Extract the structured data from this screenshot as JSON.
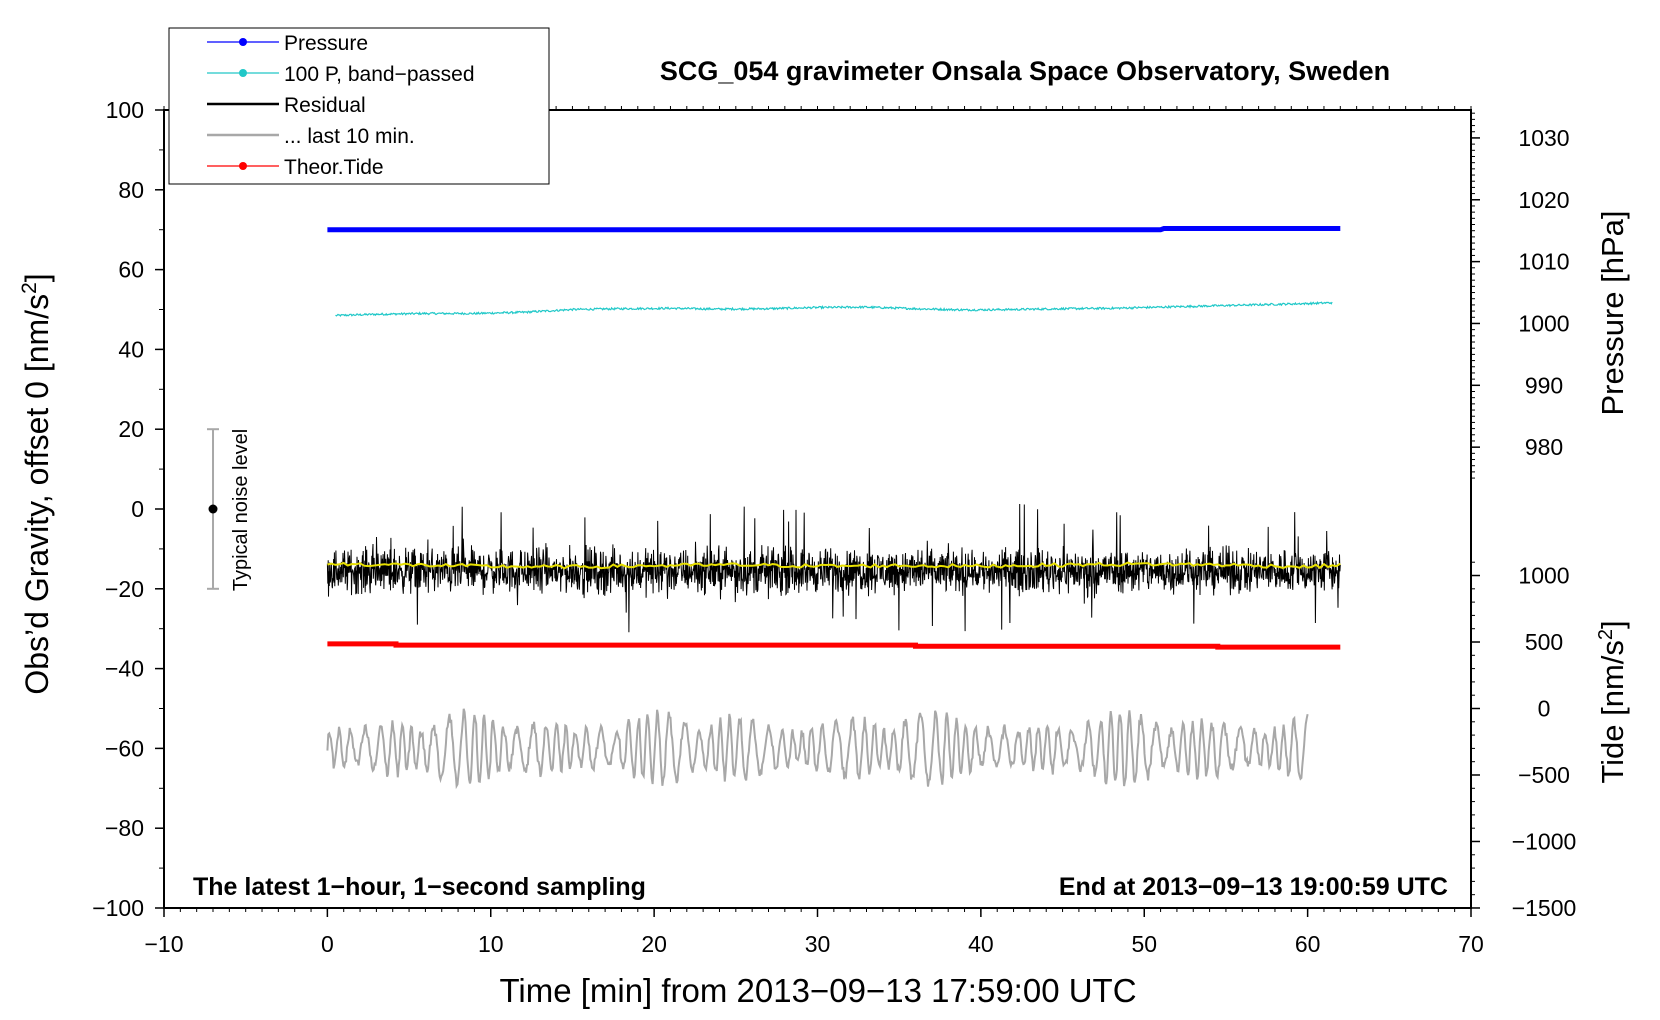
{
  "chart_data": {
    "type": "line",
    "title": "SCG_054 gravimeter Onsala Space Observatory, Sweden",
    "xlabel": "Time [min] from 2013−09−13 17:59:00 UTC",
    "ylabel_left_main": "Obs’d Gravity, offset 0 [nm/s",
    "ylabel_left_sup": "2",
    "ylabel_left_close": "]",
    "ylabel_pressure": "Pressure [hPa]",
    "ylabel_tide_main": "Tide [nm/s",
    "ylabel_tide_sup": "2",
    "ylabel_tide_close": "]",
    "xlim": [
      -10,
      70
    ],
    "ylim": [
      -100,
      100
    ],
    "x_ticks": [
      "−10",
      "0",
      "10",
      "20",
      "30",
      "40",
      "50",
      "60",
      "70"
    ],
    "x_tick_values": [
      -10,
      0,
      10,
      20,
      30,
      40,
      50,
      60,
      70
    ],
    "y_ticks": [
      "100",
      "80",
      "60",
      "40",
      "20",
      "0",
      "−20",
      "−40",
      "−60",
      "−80",
      "−100"
    ],
    "y_tick_values": [
      100,
      80,
      60,
      40,
      20,
      0,
      -20,
      -40,
      -60,
      -80,
      -100
    ],
    "pressure_axis": {
      "ticks": [
        "1030",
        "1020",
        "1010",
        "1000",
        "990",
        "980"
      ],
      "tick_values": [
        1030,
        1020,
        1010,
        1000,
        990,
        980
      ],
      "gravity_at_1000": 46.5,
      "gravity_per_hPa": 1.55
    },
    "tide_axis": {
      "ticks": [
        "1000",
        "500",
        "0",
        "−500",
        "−1000",
        "−1500"
      ],
      "tick_values": [
        1000,
        500,
        0,
        -500,
        -1000,
        -1500
      ],
      "gravity_at_0": -50.0,
      "gravity_per_unit": 0.03333
    },
    "legend": [
      {
        "label": "Pressure",
        "color": "#0000ff",
        "style": "line-dot"
      },
      {
        "label": "100 P, band−passed",
        "color": "#20c8c8",
        "style": "line-dot"
      },
      {
        "label": "Residual",
        "color": "#000000",
        "style": "line"
      },
      {
        "label": "... last 10 min.",
        "color": "#a8a8a8",
        "style": "line"
      },
      {
        "label": "Theor.Tide",
        "color": "#ff0000",
        "style": "line-dot"
      }
    ],
    "series": [
      {
        "name": "Pressure",
        "color": "#0000ff",
        "x": [
          0,
          51,
          51.2,
          62
        ],
        "y": [
          70.0,
          70.0,
          70.3,
          70.3
        ]
      },
      {
        "name": "100 P, band−passed",
        "color": "#20c8c8",
        "x": [
          0.5,
          3,
          6,
          9,
          12,
          15,
          18,
          21,
          24,
          27,
          30,
          33,
          36,
          39,
          42,
          45,
          48,
          51,
          54,
          57,
          60,
          61.5
        ],
        "y": [
          48.5,
          48.8,
          49.0,
          49.0,
          49.3,
          50.0,
          50.2,
          50.3,
          50.1,
          50.2,
          50.5,
          50.6,
          50.2,
          49.9,
          50.0,
          50.2,
          50.3,
          50.6,
          50.9,
          51.2,
          51.5,
          51.7
        ]
      },
      {
        "name": "Residual",
        "color": "#000000",
        "x_range": [
          0,
          62
        ],
        "center": -15.5,
        "noise_amplitude": 8,
        "spike_range": [
          -31,
          2
        ]
      },
      {
        "name": "Residual smoothed",
        "color": "#e8e000",
        "x": [
          0,
          5,
          10,
          15,
          20,
          25,
          30,
          35,
          40,
          45,
          50,
          55,
          60,
          62
        ],
        "y": [
          -13.8,
          -14.0,
          -14.4,
          -14.5,
          -14.2,
          -14.0,
          -14.3,
          -14.2,
          -14.3,
          -14.0,
          -13.8,
          -14.0,
          -14.5,
          -14.0
        ]
      },
      {
        "name": "... last 10 min.",
        "color": "#a8a8a8",
        "x_range": [
          0,
          60
        ],
        "center": -60,
        "amplitude_range": [
          -77,
          -46
        ]
      },
      {
        "name": "Theor.Tide",
        "color": "#ff0000",
        "x": [
          0,
          4.2,
          4.2,
          36,
          36,
          54.5,
          54.5,
          62
        ],
        "y": [
          -33.8,
          -33.8,
          -34.1,
          -34.1,
          -34.4,
          -34.4,
          -34.6,
          -34.6
        ]
      }
    ],
    "noise_marker": {
      "label": "Typical noise level",
      "x": -7,
      "y": 0,
      "ymin": -20,
      "ymax": 20
    },
    "annotations": {
      "bottom_left": "The latest 1−hour, 1−second sampling",
      "bottom_right": "End at 2013−09−13 19:00:59 UTC"
    }
  }
}
